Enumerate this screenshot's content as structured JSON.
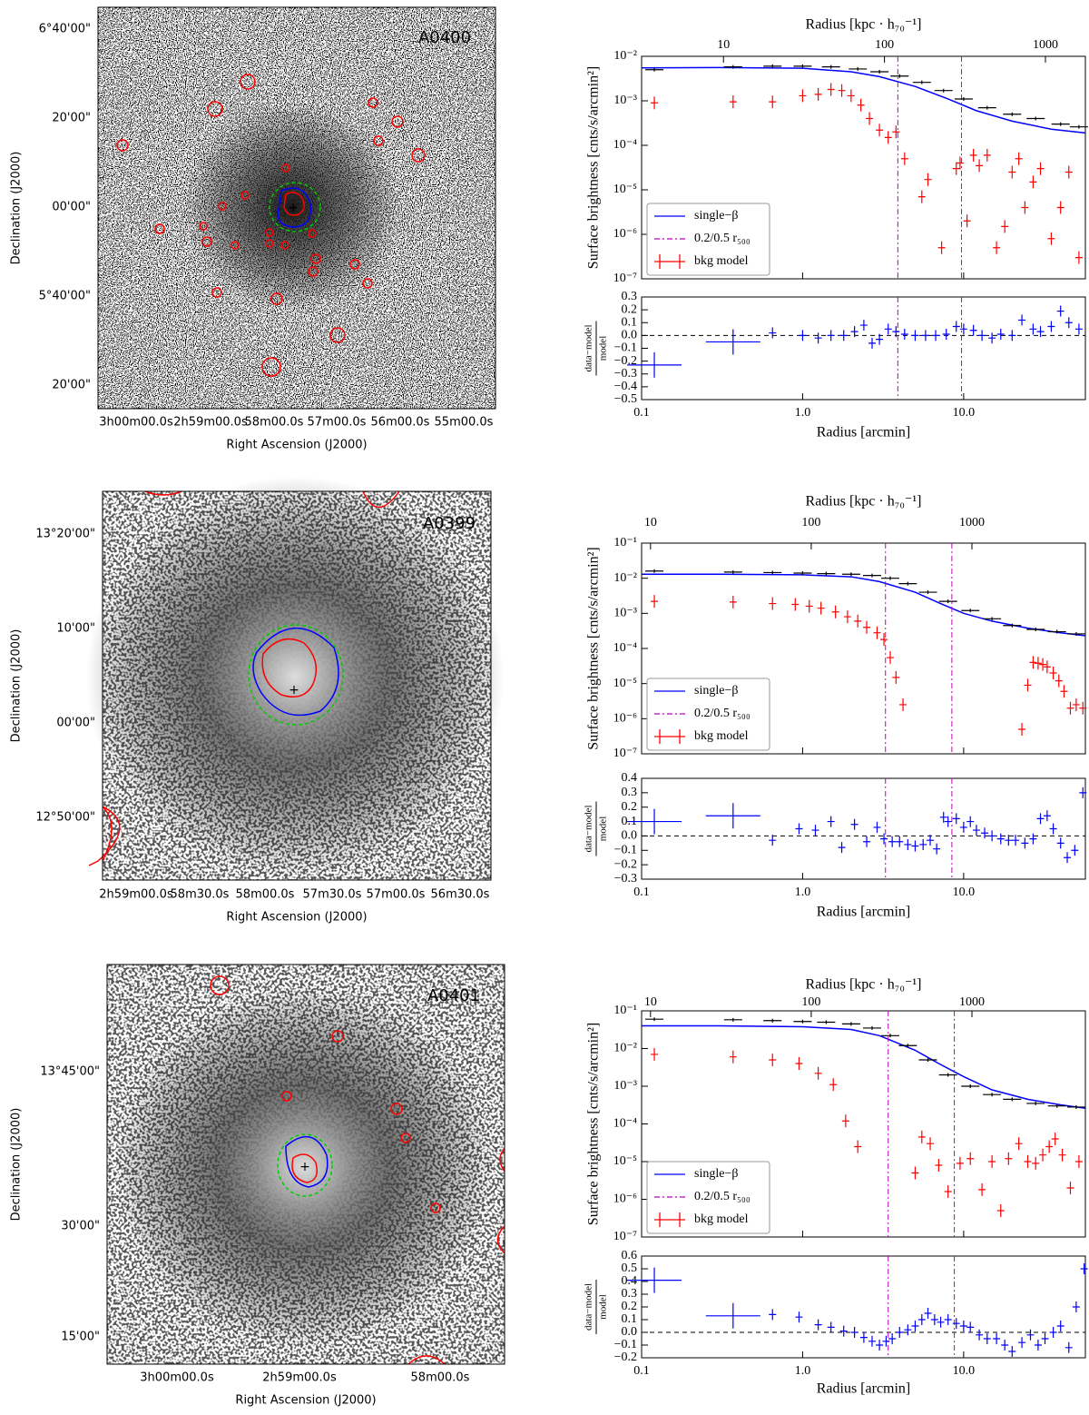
{
  "images": [
    {
      "label": "A0400",
      "xlabel": "Right Ascension (J2000)",
      "ylabel": "Declination (J2000)",
      "xticks": [
        "3h00m00.0s",
        "2h59m00.0s",
        "58m00.0s",
        "57m00.0s",
        "56m00.0s",
        "55m00.0s"
      ],
      "yticks": [
        "6°40'00\"",
        "20'00\"",
        "00'00\"",
        "5°40'00\"",
        "20'00\""
      ]
    },
    {
      "label": "A0399",
      "xlabel": "Right Ascension (J2000)",
      "ylabel": "Declination (J2000)",
      "xticks": [
        "2h59m00.0s",
        "58m30.0s",
        "58m00.0s",
        "57m30.0s",
        "57m00.0s",
        "56m30.0s"
      ],
      "yticks": [
        "13°20'00\"",
        "10'00\"",
        "00'00\"",
        "12°50'00\""
      ]
    },
    {
      "label": "A0401",
      "xlabel": "Right Ascension (J2000)",
      "ylabel": "Declination (J2000)",
      "xticks": [
        "3h00m00.0s",
        "2h59m00.0s",
        "58m00.0s"
      ],
      "yticks": [
        "13°45'00\"",
        "30'00\"",
        "15'00\""
      ]
    }
  ],
  "chart_data": [
    {
      "type": "profile",
      "log": true,
      "legend": "lower left",
      "x2label": "Radius [kpc · h₇₀⁻¹]",
      "ylabel": "Surface brightness [cnts/s/arcmin²]",
      "xlim": [
        0.1,
        57
      ],
      "x2lim": [
        3.1,
        1770
      ],
      "x2ticks": [
        10,
        100,
        1000
      ],
      "ylim": [
        1e-07,
        0.01
      ],
      "yticks": [
        {
          "value": 1e-07,
          "label": "10⁻⁷"
        },
        {
          "value": 1e-06,
          "label": "10⁻⁶"
        },
        {
          "value": 1e-05,
          "label": "10⁻⁵"
        },
        {
          "value": 0.0001,
          "label": "10⁻⁴"
        },
        {
          "value": 0.001,
          "label": "10⁻³"
        },
        {
          "value": 0.01,
          "label": "10⁻²"
        }
      ],
      "series": [
        {
          "name": "single−β",
          "color": "#0000ff",
          "kind": "line",
          "x": [
            0.1,
            0.3,
            1,
            2,
            3,
            5,
            8,
            12,
            20,
            35,
            57
          ],
          "values": [
            0.0055,
            0.0056,
            0.0054,
            0.0045,
            0.0035,
            0.0021,
            0.0011,
            0.0006,
            0.00035,
            0.00023,
            0.00019
          ]
        },
        {
          "name": "0.2/0.5 r₅₀₀",
          "color": "#bf00bf",
          "kind": "vline",
          "x": [
            3.9,
            9.7
          ]
        },
        {
          "name": "bkg model",
          "color": "#ff0000",
          "kind": "cross",
          "x": [
            0.12,
            0.37,
            0.65,
            1,
            1.25,
            1.5,
            1.75,
            2,
            2.3,
            2.6,
            3,
            3.4,
            3.8,
            4.3,
            5.5,
            6,
            7.3,
            9,
            9.5,
            10.5,
            11.5,
            12.5,
            14,
            16,
            18,
            20,
            22,
            24,
            27,
            30,
            35,
            40,
            45,
            52
          ],
          "values": [
            0.0009,
            0.00095,
            0.00095,
            0.0013,
            0.0014,
            0.0018,
            0.0017,
            0.0013,
            0.0008,
            0.0004,
            0.00022,
            0.00015,
            0.0002,
            5e-05,
            7e-06,
            1.7e-05,
            5e-07,
            3e-05,
            4e-05,
            2e-06,
            6e-05,
            3.5e-05,
            6e-05,
            5e-07,
            1.5e-06,
            2.5e-05,
            5e-05,
            4e-06,
            1.5e-05,
            3e-05,
            8e-07,
            4e-06,
            2.5e-05,
            3e-07
          ]
        },
        {
          "color": "#000000",
          "kind": "cross",
          "x": [
            0.12,
            0.37,
            0.65,
            1,
            1.5,
            2.2,
            3,
            4,
            5.5,
            7.5,
            10,
            14,
            20,
            28,
            40,
            52
          ],
          "values": [
            0.005,
            0.0058,
            0.006,
            0.006,
            0.0058,
            0.0052,
            0.0045,
            0.0036,
            0.0026,
            0.0017,
            0.0011,
            0.0007,
            0.0005,
            0.0004,
            0.0003,
            0.00026
          ]
        }
      ]
    },
    {
      "type": "residual",
      "xlabel": "Radius [arcmin]",
      "ylabel": {
        "numerator": "data−model",
        "denominator": "model"
      },
      "xlim": [
        0.1,
        57
      ],
      "xticks": [
        0.1,
        {
          "value": 1,
          "label": "1.0"
        },
        {
          "value": 10,
          "label": "10.0"
        }
      ],
      "ylim": [
        -0.5,
        0.3
      ],
      "yticks": [
        {
          "value": -0.5,
          "label": "−0.5"
        },
        {
          "value": -0.4,
          "label": "−0.4"
        },
        {
          "value": -0.3,
          "label": "−0.3"
        },
        {
          "value": -0.2,
          "label": "−0.2"
        },
        {
          "value": -0.1,
          "label": "−0.1"
        },
        {
          "value": 0,
          "label": "0.0"
        },
        0.1,
        0.2,
        0.3
      ],
      "hline": 0,
      "series": [
        {
          "color": "#0000ff",
          "x": [
            0.12,
            0.37,
            0.65,
            1,
            1.25,
            1.5,
            1.8,
            2.1,
            2.4,
            2.7,
            3.0,
            3.4,
            3.8,
            4.3,
            5,
            5.8,
            6.7,
            7.8,
            9,
            10,
            11.5,
            13,
            15,
            17,
            20,
            23,
            27,
            30,
            35,
            40,
            45,
            52
          ],
          "values": [
            -0.23,
            -0.05,
            0.02,
            0.0,
            -0.02,
            0.0,
            0.0,
            0.03,
            0.08,
            -0.06,
            -0.03,
            0.05,
            0.03,
            0.01,
            0.0,
            0.0,
            0.0,
            0.01,
            0.07,
            0.05,
            0.04,
            0.0,
            -0.02,
            0.01,
            0.0,
            0.12,
            0.05,
            0.03,
            0.07,
            0.19,
            0.1,
            0.05
          ]
        }
      ]
    },
    {
      "type": "profile",
      "log": true,
      "legend": "lower left",
      "x2label": "Radius [kpc · h₇₀⁻¹]",
      "ylabel": "Surface brightness [cnts/s/arcmin²]",
      "xlim": [
        0.1,
        57
      ],
      "x2lim": [
        8.8,
        5080
      ],
      "x2ticks": [
        10,
        100,
        1000
      ],
      "ylim": [
        1e-07,
        0.1
      ],
      "yticks": [
        {
          "value": 1e-07,
          "label": "10⁻⁷"
        },
        {
          "value": 1e-06,
          "label": "10⁻⁶"
        },
        {
          "value": 1e-05,
          "label": "10⁻⁵"
        },
        {
          "value": 0.0001,
          "label": "10⁻⁴"
        },
        {
          "value": 0.001,
          "label": "10⁻³"
        },
        {
          "value": 0.01,
          "label": "10⁻²"
        },
        {
          "value": 0.1,
          "label": "10⁻¹"
        }
      ],
      "series": [
        {
          "name": "single−β",
          "color": "#0000ff",
          "kind": "line",
          "x": [
            0.1,
            0.3,
            1,
            2,
            3,
            5,
            7,
            10,
            15,
            25,
            40,
            57
          ],
          "values": [
            0.013,
            0.013,
            0.0125,
            0.011,
            0.008,
            0.004,
            0.002,
            0.001,
            0.0006,
            0.00038,
            0.00028,
            0.00023
          ]
        },
        {
          "name": "0.2/0.5 r₅₀₀",
          "color": "#bf00bf",
          "kind": "vline",
          "x": [
            3.27,
            8.45
          ]
        },
        {
          "name": "bkg model",
          "color": "#ff0000",
          "kind": "cross",
          "x": [
            0.12,
            0.37,
            0.65,
            0.9,
            1.1,
            1.3,
            1.6,
            1.9,
            2.2,
            2.5,
            2.9,
            3.2,
            3.5,
            3.8,
            4.2,
            23,
            25,
            27,
            29,
            31,
            33,
            36,
            39,
            42,
            46,
            50,
            55
          ],
          "values": [
            0.0022,
            0.0021,
            0.0019,
            0.0018,
            0.0016,
            0.0014,
            0.0011,
            0.0008,
            0.0006,
            0.0004,
            0.00028,
            0.00018,
            5.5e-05,
            1.5e-05,
            2.5e-06,
            5e-07,
            9e-06,
            4e-05,
            3.8e-05,
            3.5e-05,
            3e-05,
            2e-05,
            1.2e-05,
            6e-06,
            2e-06,
            2.5e-06,
            2e-06
          ]
        },
        {
          "color": "#000000",
          "kind": "cross",
          "x": [
            0.12,
            0.37,
            0.65,
            1,
            1.4,
            2,
            2.7,
            3.5,
            4.5,
            6,
            8,
            11,
            15,
            20,
            28,
            38,
            50
          ],
          "values": [
            0.016,
            0.015,
            0.0145,
            0.014,
            0.0135,
            0.013,
            0.012,
            0.01,
            0.007,
            0.004,
            0.0022,
            0.0012,
            0.0007,
            0.00045,
            0.00035,
            0.0003,
            0.00026
          ]
        }
      ]
    },
    {
      "type": "residual",
      "xlabel": "Radius [arcmin]",
      "ylabel": {
        "numerator": "data−model",
        "denominator": "model"
      },
      "xlim": [
        0.1,
        57
      ],
      "xticks": [
        0.1,
        {
          "value": 1,
          "label": "1.0"
        },
        {
          "value": 10,
          "label": "10.0"
        }
      ],
      "ylim": [
        -0.3,
        0.4
      ],
      "yticks": [
        {
          "value": -0.3,
          "label": "−0.3"
        },
        {
          "value": -0.2,
          "label": "−0.2"
        },
        {
          "value": -0.1,
          "label": "−0.1"
        },
        {
          "value": 0,
          "label": "0.0"
        },
        0.1,
        0.2,
        0.3,
        0.4
      ],
      "hline": 0,
      "series": [
        {
          "color": "#0000ff",
          "x": [
            0.12,
            0.37,
            0.65,
            0.95,
            1.2,
            1.5,
            1.75,
            2.1,
            2.5,
            2.9,
            3.2,
            3.6,
            4,
            4.5,
            5,
            5.6,
            6.2,
            6.8,
            7.5,
            8,
            9,
            10,
            11,
            12,
            13.5,
            15,
            17,
            19,
            21,
            24,
            27,
            30,
            33,
            36,
            40,
            44,
            49,
            55
          ],
          "values": [
            0.1,
            0.14,
            -0.03,
            0.05,
            0.04,
            0.1,
            -0.08,
            0.08,
            -0.04,
            0.06,
            -0.02,
            -0.04,
            -0.04,
            -0.06,
            -0.07,
            -0.06,
            -0.03,
            -0.09,
            0.13,
            0.1,
            0.12,
            0.06,
            0.1,
            0.04,
            0.02,
            0,
            -0.02,
            -0.03,
            -0.03,
            -0.05,
            -0.02,
            0.12,
            0.14,
            0.05,
            -0.05,
            -0.15,
            -0.1,
            0.3
          ]
        }
      ]
    },
    {
      "type": "profile",
      "log": true,
      "legend": "lower left",
      "x2label": "Radius [kpc · h₇₀⁻¹]",
      "ylabel": "Surface brightness [cnts/s/arcmin²]",
      "xlim": [
        0.1,
        57
      ],
      "x2lim": [
        8.8,
        5080
      ],
      "x2ticks": [
        10,
        100,
        1000
      ],
      "ylim": [
        1e-07,
        0.1
      ],
      "yticks": [
        {
          "value": 1e-07,
          "label": "10⁻⁷"
        },
        {
          "value": 1e-06,
          "label": "10⁻⁶"
        },
        {
          "value": 1e-05,
          "label": "10⁻⁵"
        },
        {
          "value": 0.0001,
          "label": "10⁻⁴"
        },
        {
          "value": 0.001,
          "label": "10⁻³"
        },
        {
          "value": 0.01,
          "label": "10⁻²"
        },
        {
          "value": 0.1,
          "label": "10⁻¹"
        }
      ],
      "series": [
        {
          "name": "single−β",
          "color": "#0000ff",
          "kind": "line",
          "x": [
            0.1,
            0.3,
            1,
            2,
            3,
            5,
            7,
            10,
            15,
            25,
            40,
            57
          ],
          "values": [
            0.04,
            0.04,
            0.038,
            0.032,
            0.022,
            0.009,
            0.004,
            0.0018,
            0.0008,
            0.00045,
            0.00032,
            0.00026
          ]
        },
        {
          "name": "0.2/0.5 r₅₀₀",
          "color": "#bf00bf",
          "kind": "vline",
          "x": [
            3.4,
            8.75
          ]
        },
        {
          "name": "bkg model",
          "color": "#ff0000",
          "kind": "cross",
          "x": [
            0.12,
            0.37,
            0.65,
            0.95,
            1.25,
            1.55,
            1.85,
            2.2,
            5,
            5.5,
            6.2,
            7,
            8,
            9.5,
            11,
            13,
            15,
            17,
            19,
            22,
            25,
            28,
            31,
            34,
            37,
            41,
            46,
            52
          ],
          "values": [
            0.007,
            0.006,
            0.005,
            0.004,
            0.0022,
            0.0011,
            0.00012,
            2.5e-05,
            5e-06,
            4.5e-05,
            3e-05,
            8e-06,
            1.6e-06,
            9e-06,
            1.2e-05,
            1.8e-06,
            1e-05,
            5e-07,
            1.2e-05,
            3e-05,
            1e-05,
            9e-06,
            1.5e-05,
            2.5e-05,
            4e-05,
            1.5e-05,
            2e-06,
            1e-05
          ]
        },
        {
          "color": "#000000",
          "kind": "cross",
          "x": [
            0.12,
            0.37,
            0.65,
            1,
            1.4,
            2,
            2.7,
            3.5,
            4.5,
            6,
            8,
            11,
            15,
            20,
            28,
            38,
            50
          ],
          "values": [
            0.06,
            0.058,
            0.055,
            0.052,
            0.05,
            0.045,
            0.035,
            0.022,
            0.012,
            0.005,
            0.002,
            0.001,
            0.0006,
            0.00045,
            0.00035,
            0.0003,
            0.00028
          ]
        }
      ]
    },
    {
      "type": "residual",
      "xlabel": "Radius [arcmin]",
      "ylabel": {
        "numerator": "data−model",
        "denominator": "model"
      },
      "xlim": [
        0.1,
        57
      ],
      "xticks": [
        0.1,
        {
          "value": 1,
          "label": "1.0"
        },
        {
          "value": 10,
          "label": "10.0"
        }
      ],
      "ylim": [
        -0.2,
        0.6
      ],
      "yticks": [
        {
          "value": -0.2,
          "label": "−0.2"
        },
        {
          "value": -0.1,
          "label": "−0.1"
        },
        {
          "value": 0,
          "label": "0.0"
        },
        0.1,
        0.2,
        0.3,
        0.4,
        0.5,
        0.6
      ],
      "hline": 0,
      "series": [
        {
          "color": "#0000ff",
          "x": [
            0.12,
            0.37,
            0.65,
            0.95,
            1.25,
            1.5,
            1.8,
            2.1,
            2.4,
            2.7,
            3,
            3.3,
            3.6,
            4,
            4.5,
            5,
            5.5,
            6,
            6.6,
            7.2,
            8,
            9,
            10,
            11,
            12.5,
            14,
            16,
            18,
            20,
            23,
            26,
            29,
            32,
            36,
            40,
            45,
            50,
            56
          ],
          "values": [
            0.41,
            0.13,
            0.14,
            0.12,
            0.06,
            0.04,
            0.01,
            0,
            -0.04,
            -0.07,
            -0.1,
            -0.07,
            -0.05,
            0,
            0.02,
            0.05,
            0.1,
            0.15,
            0.1,
            0.08,
            0.1,
            0.07,
            0.05,
            0.04,
            -0.02,
            -0.05,
            -0.05,
            -0.1,
            -0.15,
            -0.08,
            -0.02,
            -0.1,
            -0.05,
            0,
            0.05,
            -0.12,
            0.2,
            0.5
          ]
        }
      ]
    }
  ]
}
